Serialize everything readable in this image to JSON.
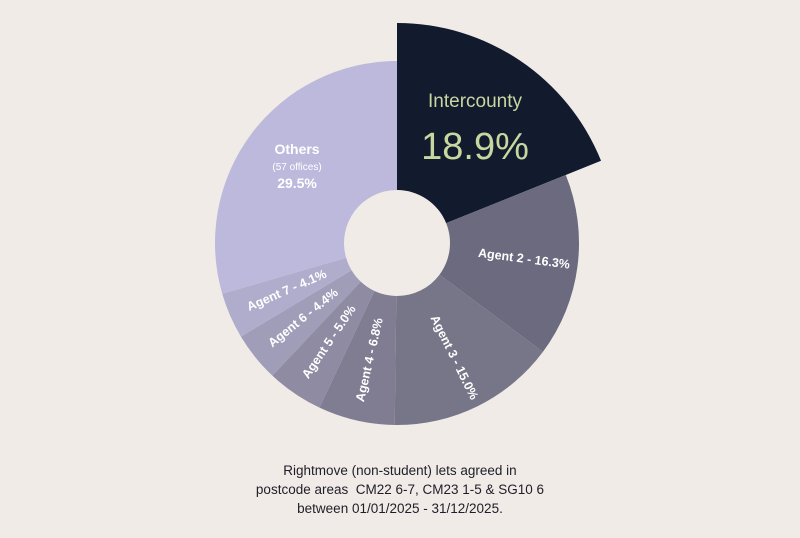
{
  "chart_data": {
    "type": "pie",
    "variant": "donut",
    "series": [
      {
        "label": "Intercounty",
        "value": 18.9,
        "display": "18.9%",
        "color": "#121a2e",
        "text_color": "#c8d6a0",
        "exploded": true
      },
      {
        "label": "Agent 2",
        "value": 16.3,
        "display": "Agent 2 - 16.3%",
        "color": "#6b6a7f",
        "text_color": "#ffffff"
      },
      {
        "label": "Agent 3",
        "value": 15.0,
        "display": "Agent 3 - 15.0%",
        "color": "#777588",
        "text_color": "#ffffff"
      },
      {
        "label": "Agent 4",
        "value": 6.8,
        "display": "Agent 4 - 6.8%",
        "color": "#807d92",
        "text_color": "#ffffff"
      },
      {
        "label": "Agent 5",
        "value": 5.0,
        "display": "Agent 5 - 5.0%",
        "color": "#8e8ba3",
        "text_color": "#ffffff"
      },
      {
        "label": "Agent 6",
        "value": 4.4,
        "display": "Agent 6 - 4.4%",
        "color": "#a09db9",
        "text_color": "#ffffff"
      },
      {
        "label": "Agent 7",
        "value": 4.1,
        "display": "Agent 7 - 4.1%",
        "color": "#b0adcc",
        "text_color": "#ffffff"
      },
      {
        "label": "Others",
        "value": 29.5,
        "display": "29.5%",
        "sublabel": "(57 offices)",
        "color": "#bdb9dc",
        "text_color": "#ffffff"
      }
    ]
  },
  "caption": {
    "line1": "Rightmove (non-student) lets agreed in",
    "line2": "postcode areas  CM22 6-7, CM23 1-5 & SG10 6",
    "line3": "between 01/01/2025 - 31/12/2025."
  }
}
